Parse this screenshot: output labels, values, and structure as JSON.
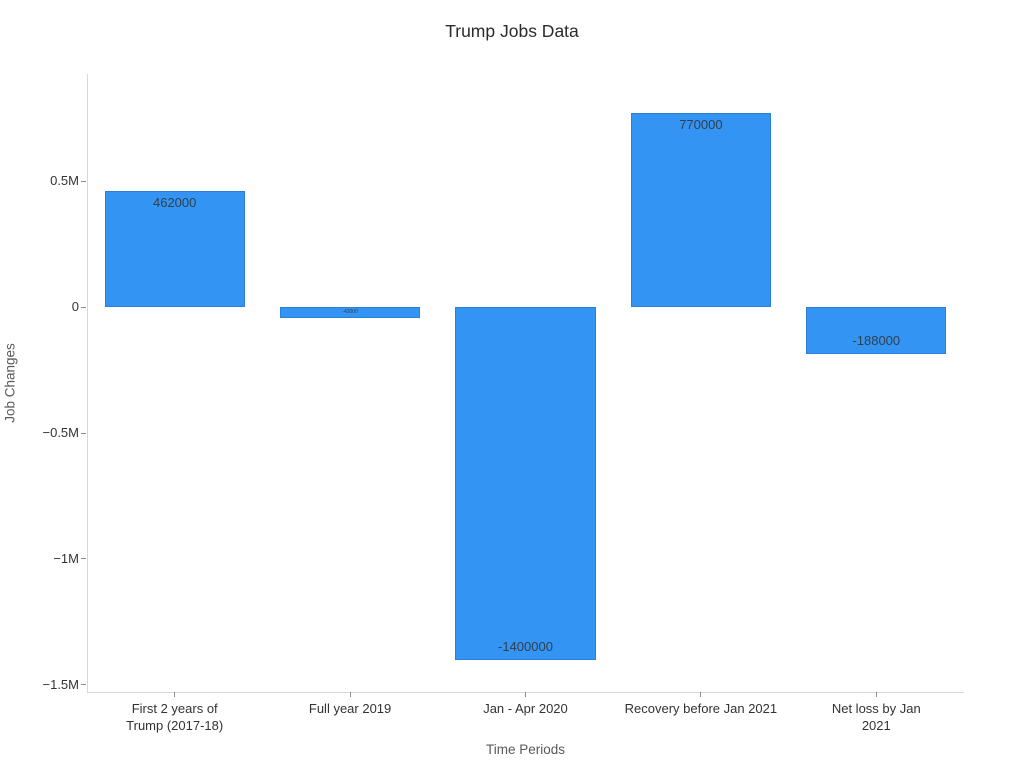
{
  "chart_data": {
    "type": "bar",
    "title": "Trump Jobs Data",
    "xlabel": "Time Periods",
    "ylabel": "Job Changes",
    "categories": [
      "First 2 years of\nTrump (2017-18)",
      "Full year 2019",
      "Jan - Apr 2020",
      "Recovery before Jan 2021",
      "Net loss by Jan\n2021"
    ],
    "values": [
      462000,
      -43000,
      -1400000,
      770000,
      -188000
    ],
    "bar_labels": [
      "462000",
      "-43000",
      "-1400000",
      "770000",
      "-188000"
    ],
    "yticks": [
      {
        "label": "0.5M",
        "value": 500000
      },
      {
        "label": "0",
        "value": 0
      },
      {
        "label": "−0.5M",
        "value": -500000
      },
      {
        "label": "−1M",
        "value": -1000000
      },
      {
        "label": "−1.5M",
        "value": -1500000
      }
    ],
    "ylim": [
      -1528000,
      925000
    ],
    "grid": false,
    "legend": null,
    "colors": {
      "bar_fill": "#3494f4",
      "bar_border": "#2a7fd8",
      "axis_line": "#d9d9d9",
      "tick_mark": "#8c8c8c",
      "tick_text": "#333333",
      "axis_title_text": "#595959",
      "title_text": "#2b2b2b",
      "bar_label_text": "#30404d",
      "background": "#ffffff"
    }
  }
}
